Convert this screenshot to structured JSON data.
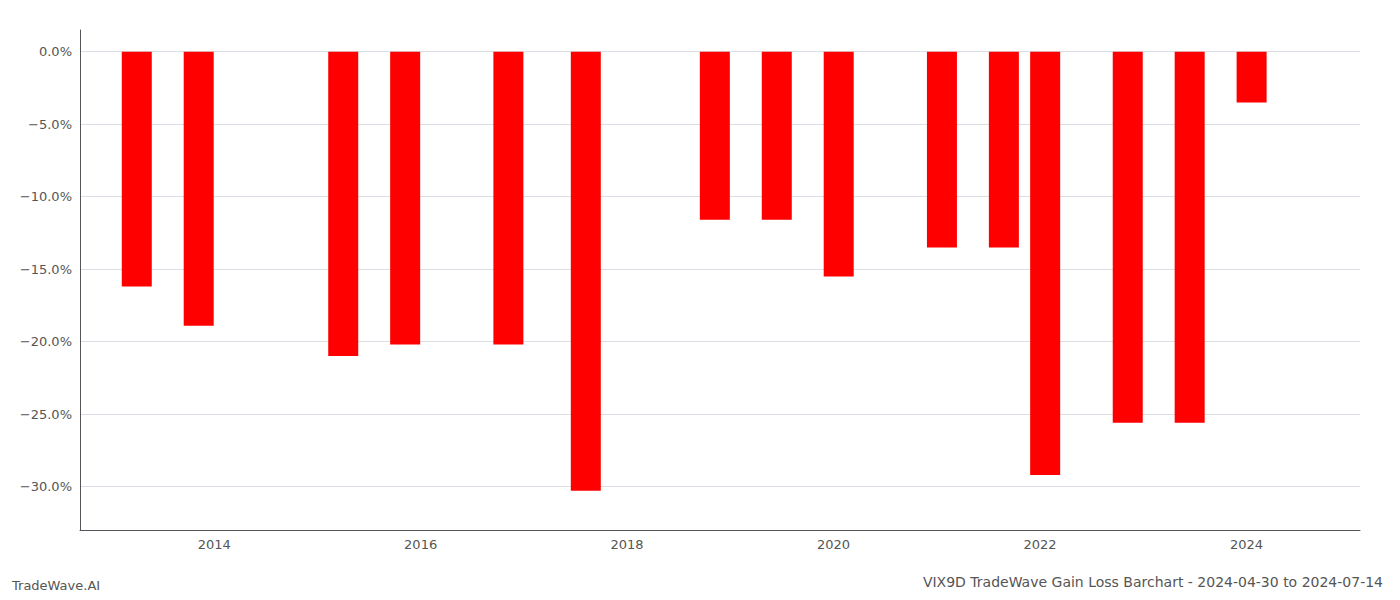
{
  "chart_data": {
    "type": "bar",
    "title": "VIX9D TradeWave Gain Loss Barchart - 2024-04-30 to 2024-07-14",
    "annotations": [
      "TradeWave.AI"
    ],
    "x": [
      2013.25,
      2013.85,
      2015.25,
      2015.85,
      2016.85,
      2017.6,
      2018.85,
      2019.45,
      2020.05,
      2021.05,
      2021.65,
      2022.05,
      2022.85,
      2023.45,
      2024.05
    ],
    "values": [
      -16.2,
      -18.9,
      -21.0,
      -20.2,
      -20.2,
      -30.3,
      -11.6,
      -11.6,
      -15.5,
      -13.5,
      -13.5,
      -29.2,
      -25.6,
      -25.6,
      -3.5
    ],
    "color": "#ff0000",
    "xlim": [
      2012.7,
      2025.1
    ],
    "xticks": [
      2014,
      2016,
      2018,
      2020,
      2022,
      2024
    ],
    "ylim": [
      -33,
      1.5
    ],
    "yticks": [
      {
        "value": 0.0,
        "label": "0.0%"
      },
      {
        "value": -5.0,
        "label": "−5.0%"
      },
      {
        "value": -10.0,
        "label": "−10.0%"
      },
      {
        "value": -15.0,
        "label": "−15.0%"
      },
      {
        "value": -20.0,
        "label": "−20.0%"
      },
      {
        "value": -25.0,
        "label": "−25.0%"
      },
      {
        "value": -30.0,
        "label": "−30.0%"
      }
    ],
    "grid": true
  }
}
